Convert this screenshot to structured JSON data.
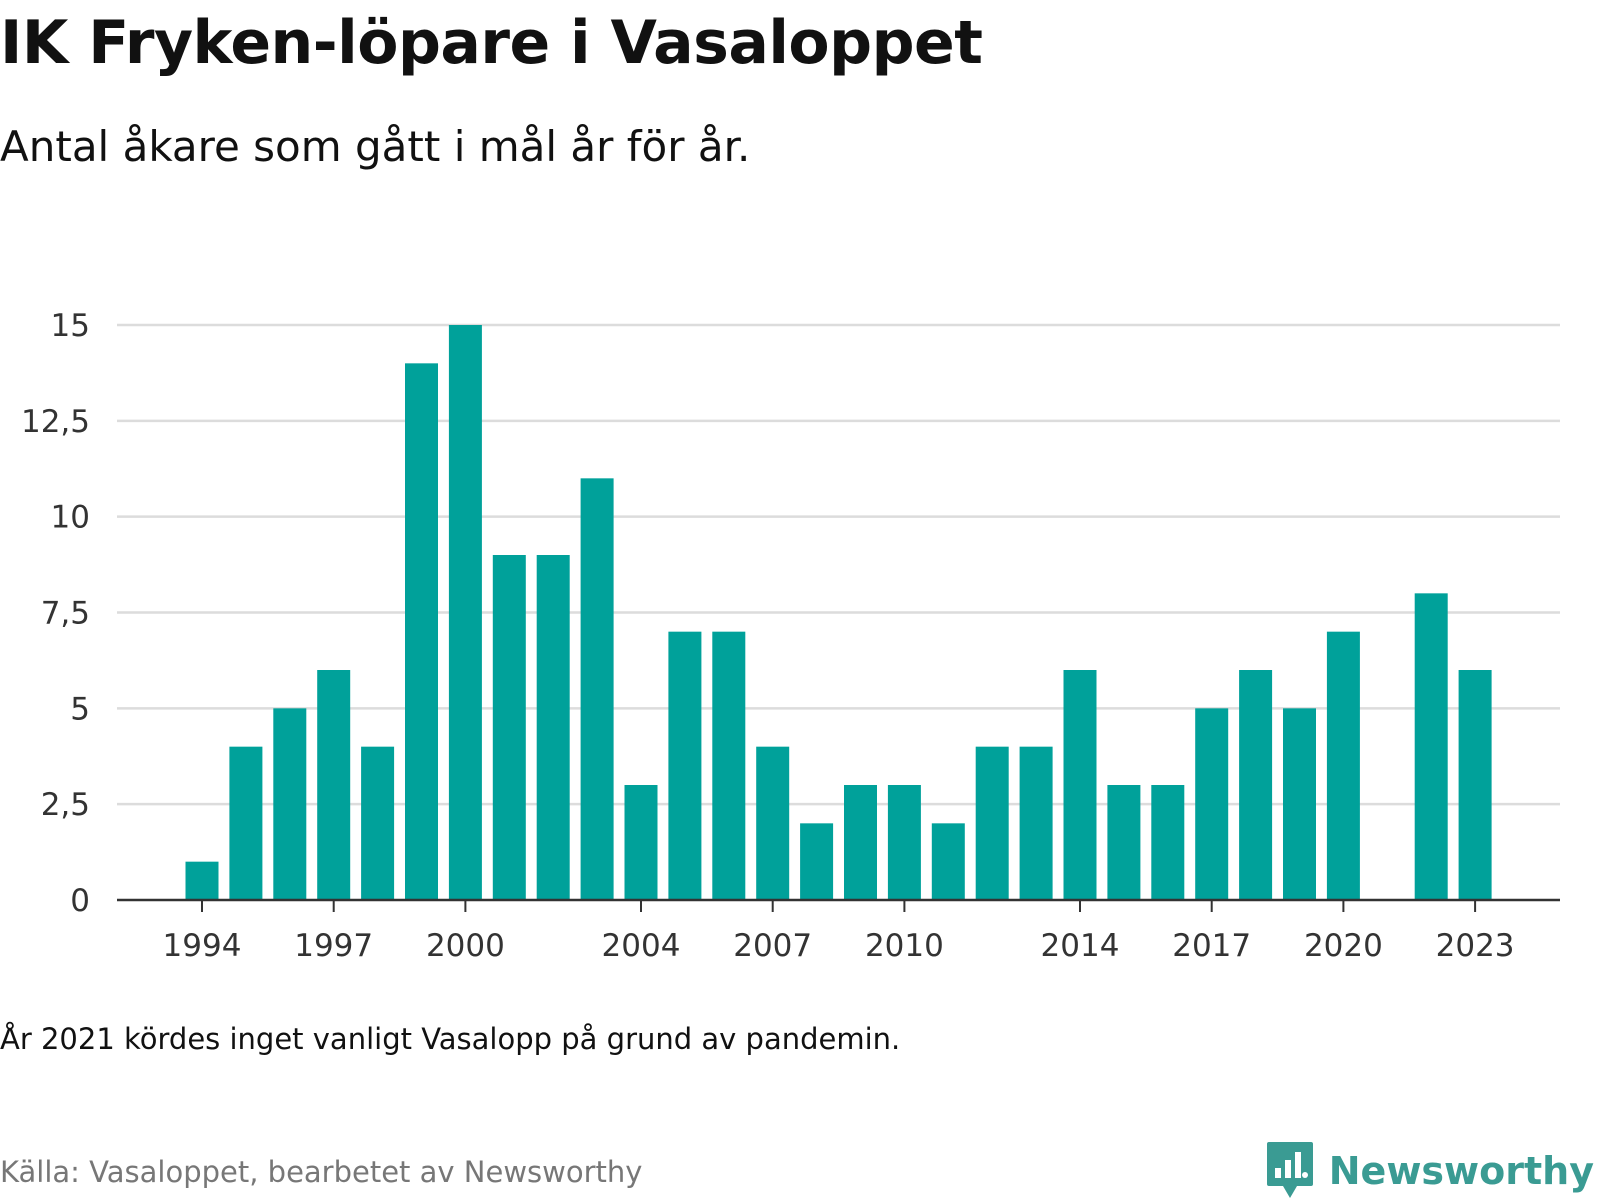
{
  "header": {
    "title": "IK Fryken-löpare i Vasaloppet",
    "subtitle": "Antal åkare som gått i mål år för år."
  },
  "chart_data": {
    "type": "bar",
    "categories": [
      "1994",
      "1995",
      "1996",
      "1997",
      "1998",
      "1999",
      "2000",
      "2001",
      "2002",
      "2003",
      "2004",
      "2005",
      "2006",
      "2007",
      "2008",
      "2009",
      "2010",
      "2011",
      "2012",
      "2013",
      "2014",
      "2015",
      "2016",
      "2017",
      "2018",
      "2019",
      "2020",
      "2021",
      "2022",
      "2023"
    ],
    "values": [
      1,
      4,
      5,
      6,
      4,
      14,
      15,
      9,
      9,
      11,
      3,
      7,
      7,
      4,
      2,
      3,
      3,
      2,
      4,
      4,
      6,
      3,
      3,
      5,
      6,
      5,
      7,
      null,
      8,
      6
    ],
    "x_tick_labels": [
      "1994",
      "1997",
      "2000",
      "2004",
      "2007",
      "2010",
      "2014",
      "2017",
      "2020",
      "2023"
    ],
    "y_tick_labels": [
      "0",
      "2,5",
      "5",
      "7,5",
      "10",
      "12,5",
      "15"
    ],
    "y_ticks": [
      0,
      2.5,
      5,
      7.5,
      10,
      12.5,
      15
    ],
    "ylim": [
      0,
      15
    ],
    "grid": true,
    "bar_color": "#00a19a"
  },
  "footer": {
    "note": "År 2021 kördes inget vanligt Vasalopp på grund av pandemin.",
    "source": "Källa: Vasaloppet, bearbetet av Newsworthy",
    "brand": "Newsworthy",
    "brand_icon": "newsworthy-logo-icon"
  }
}
